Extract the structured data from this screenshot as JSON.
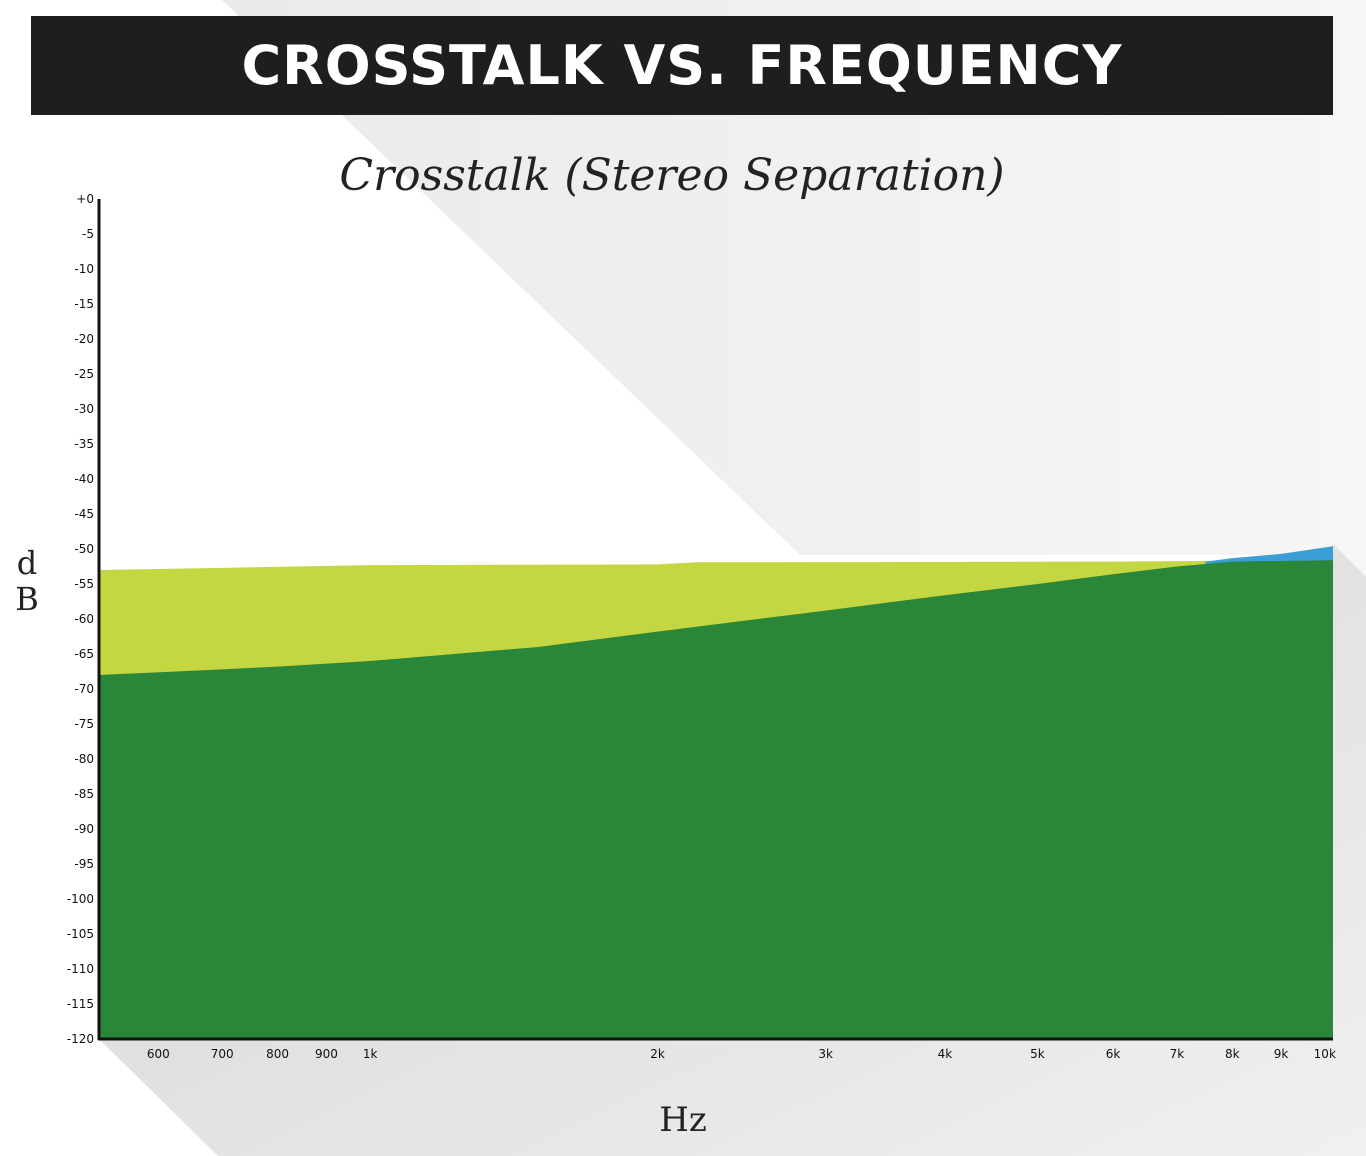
{
  "header": {
    "title": "CROSSTALK VS. FREQUENCY"
  },
  "chart_data": {
    "type": "area",
    "title": "Crosstalk (Stereo Separation)",
    "xlabel": "Hz",
    "ylabel_lines": [
      "d",
      "B"
    ],
    "xscale": "log",
    "xlim": [
      520,
      10200
    ],
    "ylim": [
      -120,
      0
    ],
    "x_ticks": [
      {
        "value": 600,
        "label": "600"
      },
      {
        "value": 700,
        "label": "700"
      },
      {
        "value": 800,
        "label": "800"
      },
      {
        "value": 900,
        "label": "900"
      },
      {
        "value": 1000,
        "label": "1k"
      },
      {
        "value": 2000,
        "label": "2k"
      },
      {
        "value": 3000,
        "label": "3k"
      },
      {
        "value": 4000,
        "label": "4k"
      },
      {
        "value": 5000,
        "label": "5k"
      },
      {
        "value": 6000,
        "label": "6k"
      },
      {
        "value": 7000,
        "label": "7k"
      },
      {
        "value": 8000,
        "label": "8k"
      },
      {
        "value": 9000,
        "label": "9k"
      },
      {
        "value": 10000,
        "label": "10k"
      }
    ],
    "y_ticks": [
      {
        "value": 0,
        "label": "+0"
      },
      {
        "value": -5,
        "label": "-5"
      },
      {
        "value": -10,
        "label": "-10"
      },
      {
        "value": -15,
        "label": "-15"
      },
      {
        "value": -20,
        "label": "-20"
      },
      {
        "value": -25,
        "label": "-25"
      },
      {
        "value": -30,
        "label": "-30"
      },
      {
        "value": -35,
        "label": "-35"
      },
      {
        "value": -40,
        "label": "-40"
      },
      {
        "value": -45,
        "label": "-45"
      },
      {
        "value": -50,
        "label": "-50"
      },
      {
        "value": -55,
        "label": "-55"
      },
      {
        "value": -60,
        "label": "-60"
      },
      {
        "value": -65,
        "label": "-65"
      },
      {
        "value": -70,
        "label": "-70"
      },
      {
        "value": -75,
        "label": "-75"
      },
      {
        "value": -80,
        "label": "-80"
      },
      {
        "value": -85,
        "label": "-85"
      },
      {
        "value": -90,
        "label": "-90"
      },
      {
        "value": -95,
        "label": "-95"
      },
      {
        "value": -100,
        "label": "-100"
      },
      {
        "value": -105,
        "label": "-105"
      },
      {
        "value": -110,
        "label": "-110"
      },
      {
        "value": -115,
        "label": "-115"
      },
      {
        "value": -120,
        "label": "-120"
      }
    ],
    "series": [
      {
        "color": "#c5d643",
        "points": [
          [
            520,
            -53
          ],
          [
            700,
            -52.7
          ],
          [
            1000,
            -52.3
          ],
          [
            2000,
            -52.2
          ],
          [
            2200,
            -51.9
          ],
          [
            6000,
            -51.8
          ],
          [
            10200,
            -51.6
          ]
        ]
      },
      {
        "color": "#3b9ed4",
        "points": [
          [
            7500,
            -51.8
          ],
          [
            8000,
            -51.3
          ],
          [
            9000,
            -50.7
          ],
          [
            10200,
            -49.6
          ]
        ]
      },
      {
        "color": "#2a8638",
        "points": [
          [
            520,
            -68
          ],
          [
            700,
            -67.2
          ],
          [
            800,
            -66.8
          ],
          [
            1000,
            -66
          ],
          [
            1500,
            -64
          ],
          [
            2000,
            -61.8
          ],
          [
            3000,
            -58.8
          ],
          [
            4000,
            -56.6
          ],
          [
            5000,
            -55
          ],
          [
            6000,
            -53.6
          ],
          [
            7000,
            -52.5
          ],
          [
            8000,
            -51.8
          ],
          [
            10200,
            -51.6
          ]
        ]
      }
    ]
  }
}
